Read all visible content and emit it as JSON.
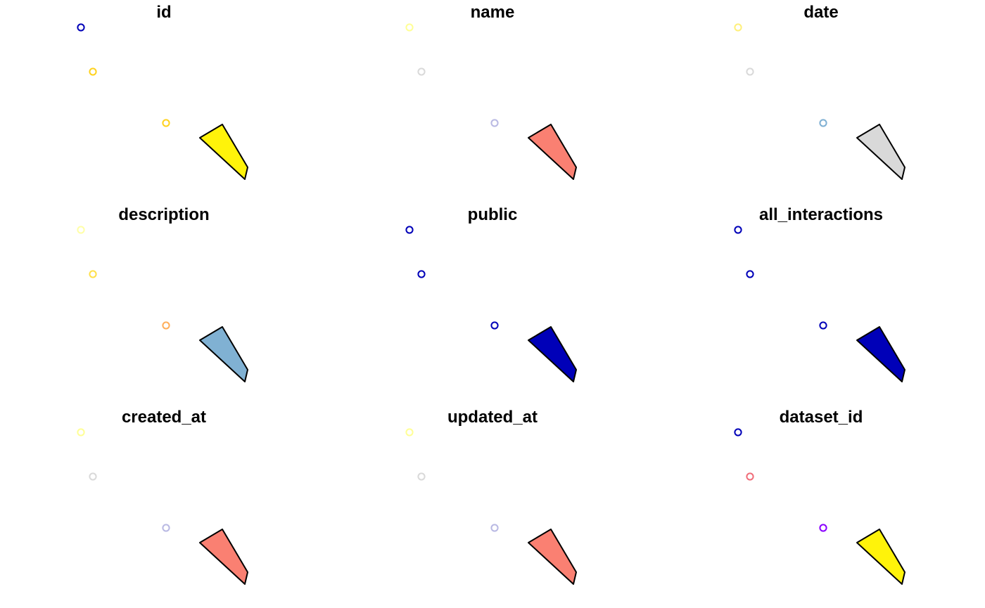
{
  "panels": [
    {
      "title": "id",
      "points": [
        "#0000b8",
        "#ffd21e",
        "#ffd21e"
      ],
      "polygon_fill": "#fff30a"
    },
    {
      "title": "name",
      "points": [
        "#ffff96",
        "#d9d9d9",
        "#b9b9e3"
      ],
      "polygon_fill": "#fa8072"
    },
    {
      "title": "date",
      "points": [
        "#fff07a",
        "#d9d9d9",
        "#7fb0d3"
      ],
      "polygon_fill": "#d9d9d9"
    },
    {
      "title": "description",
      "points": [
        "#ffffa8",
        "#ffe04a",
        "#ffae5a"
      ],
      "polygon_fill": "#80b1d3"
    },
    {
      "title": "public",
      "points": [
        "#0000b8",
        "#0000b8",
        "#0000b8"
      ],
      "polygon_fill": "#0000b8"
    },
    {
      "title": "all_interactions",
      "points": [
        "#0000b8",
        "#0000b8",
        "#0000b8"
      ],
      "polygon_fill": "#0000b8"
    },
    {
      "title": "created_at",
      "points": [
        "#ffff96",
        "#d9d9d9",
        "#b9b9e3"
      ],
      "polygon_fill": "#fa8072"
    },
    {
      "title": "updated_at",
      "points": [
        "#ffff96",
        "#d9d9d9",
        "#b9b9e3"
      ],
      "polygon_fill": "#fa8072"
    },
    {
      "title": "dataset_id",
      "points": [
        "#0000b8",
        "#f06e7a",
        "#8a00ff"
      ],
      "polygon_fill": "#fff30a"
    }
  ]
}
